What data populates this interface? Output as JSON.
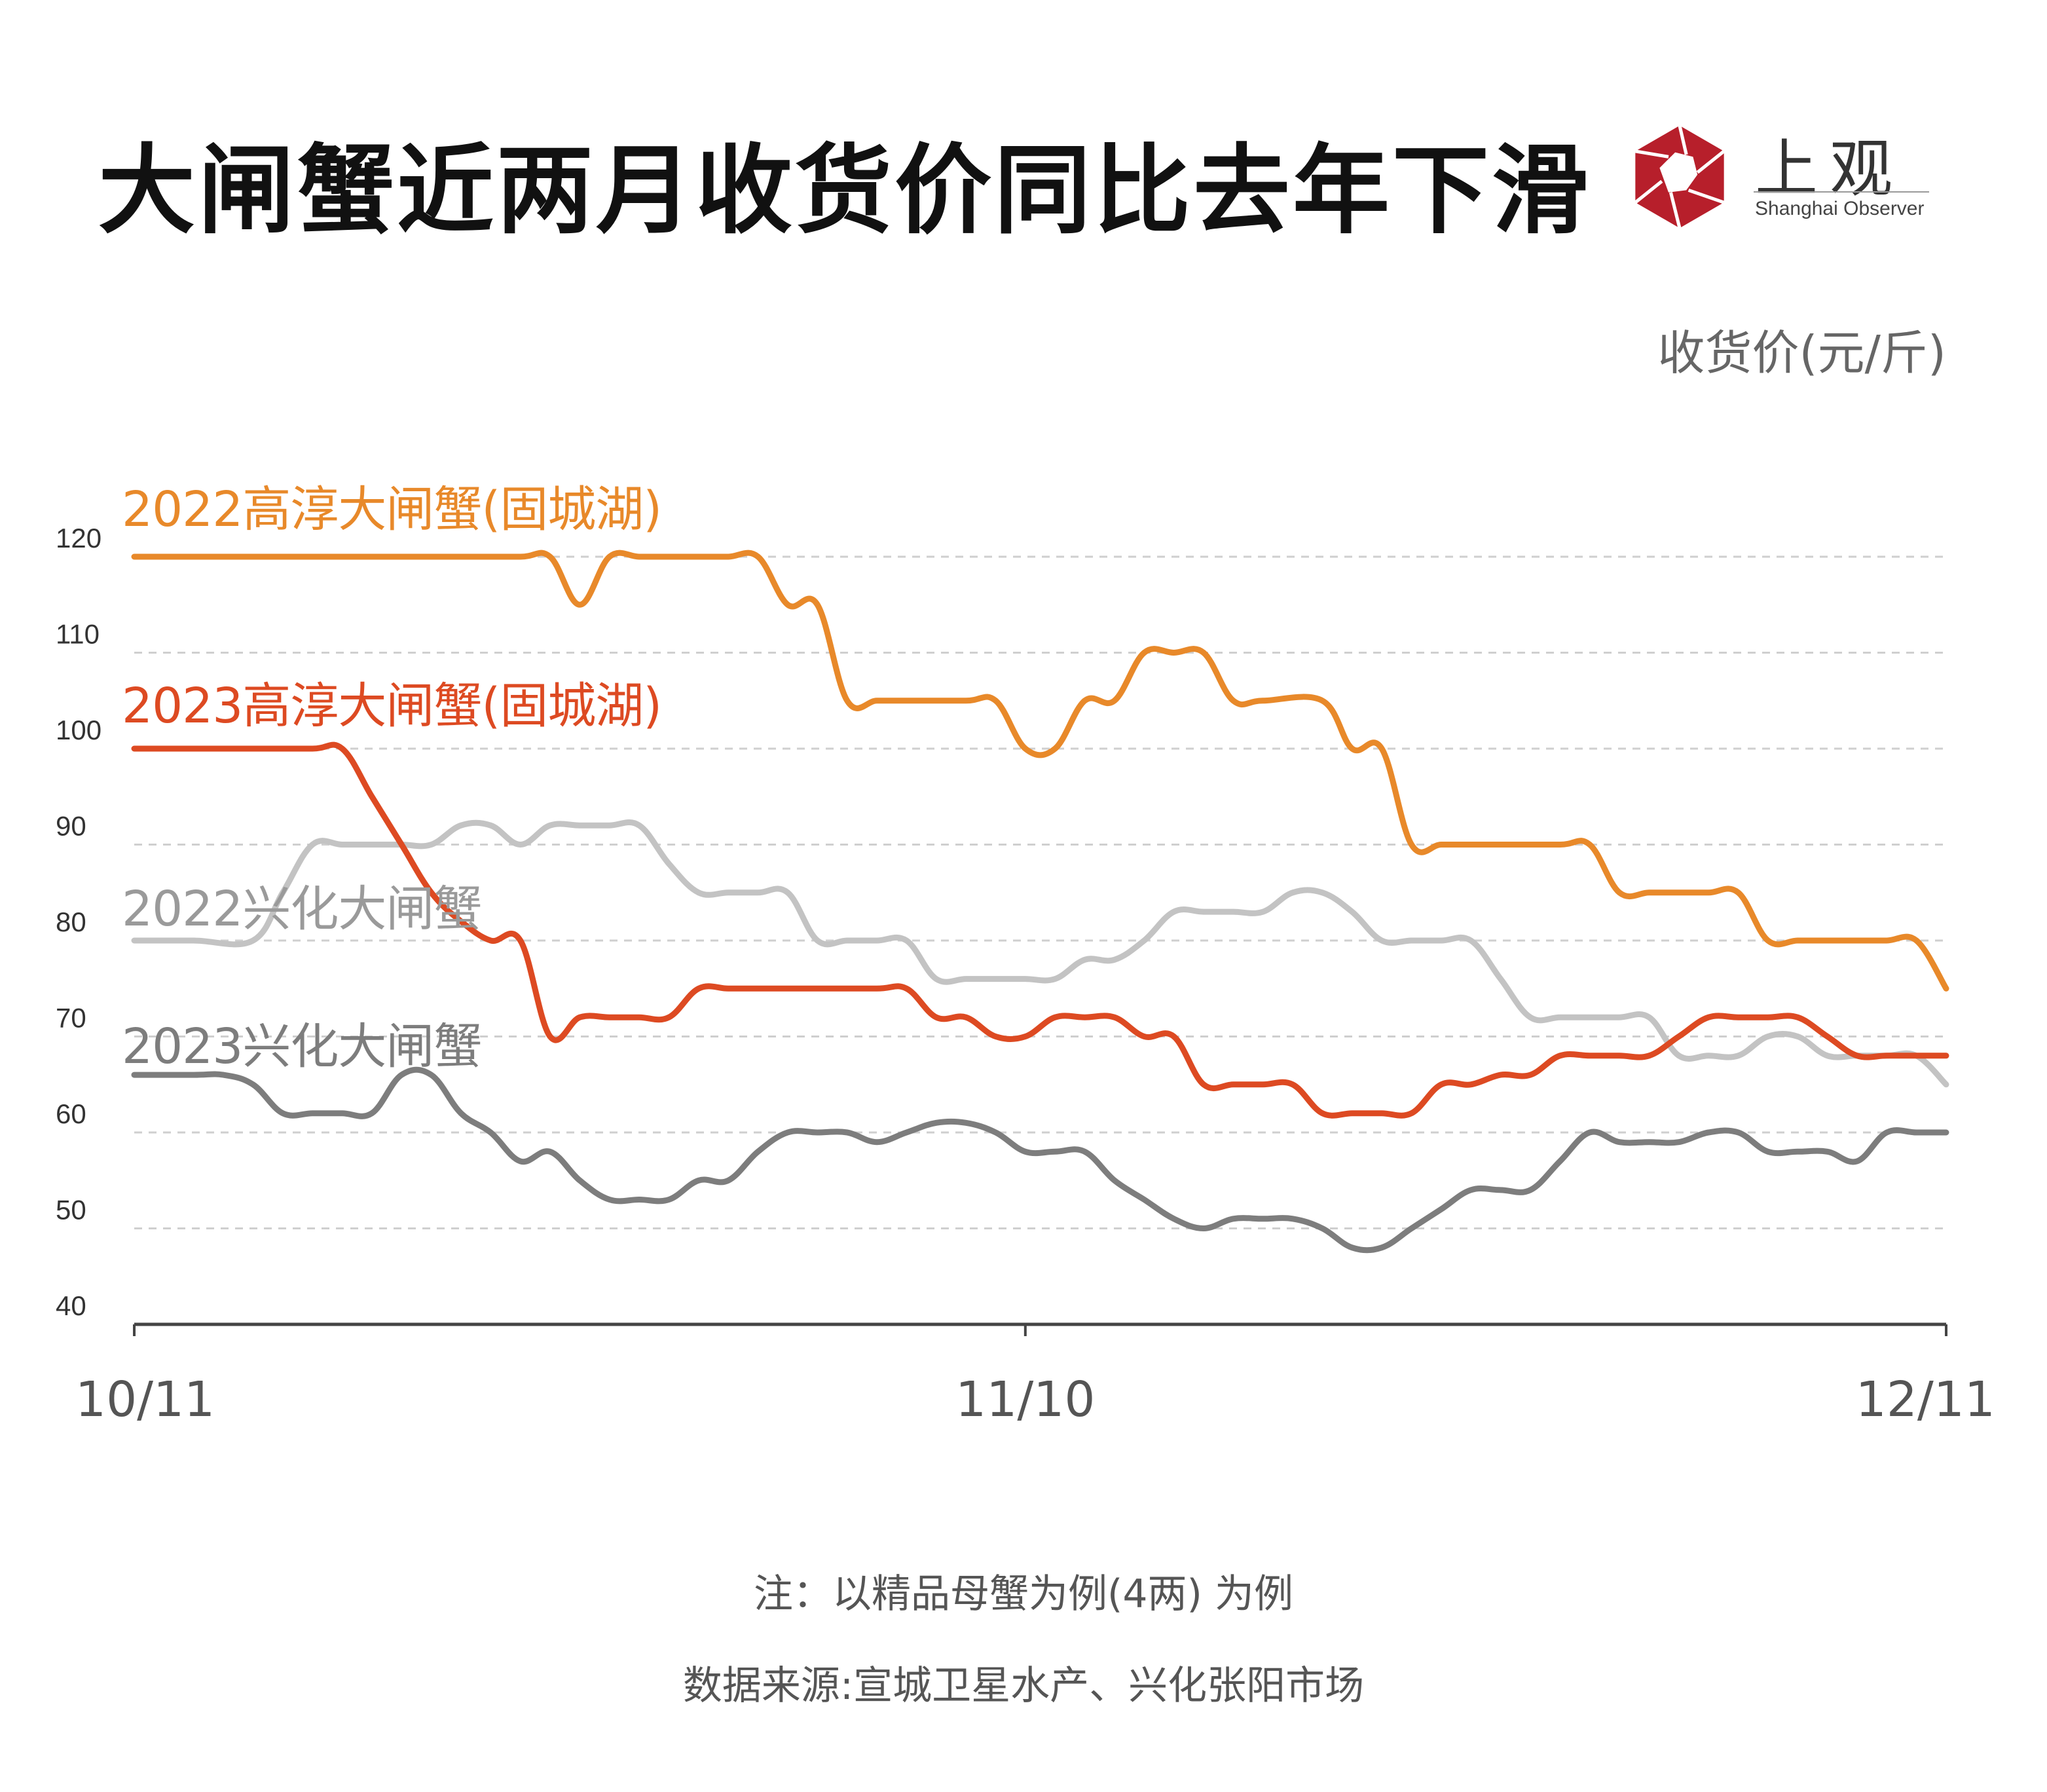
{
  "title": "大闸蟹近两月收货价同比去年下滑",
  "logo": {
    "cn": "上观",
    "en": "Shanghai Observer"
  },
  "colors": {
    "s2022_gaochun": "#E8892A",
    "s2023_gaochun": "#DD4A22",
    "s2022_xinghua": "#C3C3C3",
    "s2023_xinghua": "#7D7D7D",
    "logo_red": "#B71F2B",
    "grid": "#CFCFCF",
    "axis": "#444444"
  },
  "chart_data": {
    "type": "line",
    "title": "大闸蟹近两月收货价同比去年下滑",
    "ylabel": "收货价(元/斤)",
    "xlabel": "",
    "x_tick_labels": [
      "10/11",
      "11/10",
      "12/11"
    ],
    "x_range": [
      "10/11",
      "12/11"
    ],
    "ylim": [
      40,
      120
    ],
    "y_ticks": [
      40,
      50,
      60,
      70,
      80,
      90,
      100,
      110,
      120
    ],
    "grid": "horizontal dashed",
    "legend": "inline labels at top-left of each line",
    "series": [
      {
        "name": "2022高淳大闸蟹(固城湖)",
        "points": [
          [
            "10/11",
            120
          ],
          [
            "10/12",
            120
          ],
          [
            "10/14",
            120
          ],
          [
            "10/16",
            120
          ],
          [
            "10/18",
            120
          ],
          [
            "10/20",
            120
          ],
          [
            "10/22",
            120
          ],
          [
            "10/24",
            120
          ],
          [
            "10/25",
            120
          ],
          [
            "10/26",
            115
          ],
          [
            "10/27",
            120
          ],
          [
            "10/28",
            120
          ],
          [
            "10/29",
            120
          ],
          [
            "10/30",
            120
          ],
          [
            "10/31",
            120
          ],
          [
            "11/1",
            120
          ],
          [
            "11/2",
            115
          ],
          [
            "11/3",
            115
          ],
          [
            "11/4",
            105
          ],
          [
            "11/5",
            105
          ],
          [
            "11/6",
            105
          ],
          [
            "11/8",
            105
          ],
          [
            "11/9",
            105
          ],
          [
            "11/10",
            100
          ],
          [
            "11/11",
            100
          ],
          [
            "11/12",
            105
          ],
          [
            "11/13",
            105
          ],
          [
            "11/14",
            110
          ],
          [
            "11/15",
            110
          ],
          [
            "11/16",
            110
          ],
          [
            "11/17",
            105
          ],
          [
            "11/18",
            105
          ],
          [
            "11/20",
            105
          ],
          [
            "11/21",
            100
          ],
          [
            "11/22",
            100
          ],
          [
            "11/23",
            90
          ],
          [
            "11/24",
            90
          ],
          [
            "11/25",
            90
          ],
          [
            "11/26",
            90
          ],
          [
            "11/28",
            90
          ],
          [
            "11/29",
            90
          ],
          [
            "11/30",
            85
          ],
          [
            "12/1",
            85
          ],
          [
            "12/2",
            85
          ],
          [
            "12/3",
            85
          ],
          [
            "12/4",
            85
          ],
          [
            "12/5",
            80
          ],
          [
            "12/6",
            80
          ],
          [
            "12/7",
            80
          ],
          [
            "12/8",
            80
          ],
          [
            "12/9",
            80
          ],
          [
            "12/10",
            80
          ],
          [
            "12/11",
            75
          ]
        ]
      },
      {
        "name": "2023高淳大闸蟹(固城湖)",
        "points": [
          [
            "10/11",
            100
          ],
          [
            "10/13",
            100
          ],
          [
            "10/15",
            100
          ],
          [
            "10/17",
            100
          ],
          [
            "10/18",
            100
          ],
          [
            "10/19",
            95
          ],
          [
            "10/20",
            90
          ],
          [
            "10/21",
            85
          ],
          [
            "10/22",
            82
          ],
          [
            "10/23",
            80
          ],
          [
            "10/24",
            80
          ],
          [
            "10/25",
            70
          ],
          [
            "10/26",
            72
          ],
          [
            "10/27",
            72
          ],
          [
            "10/28",
            72
          ],
          [
            "10/29",
            72
          ],
          [
            "10/30",
            75
          ],
          [
            "10/31",
            75
          ],
          [
            "11/1",
            75
          ],
          [
            "11/3",
            75
          ],
          [
            "11/5",
            75
          ],
          [
            "11/6",
            75
          ],
          [
            "11/7",
            72
          ],
          [
            "11/8",
            72
          ],
          [
            "11/9",
            70
          ],
          [
            "11/10",
            70
          ],
          [
            "11/11",
            72
          ],
          [
            "11/12",
            72
          ],
          [
            "11/13",
            72
          ],
          [
            "11/14",
            70
          ],
          [
            "11/15",
            70
          ],
          [
            "11/16",
            65
          ],
          [
            "11/17",
            65
          ],
          [
            "11/18",
            65
          ],
          [
            "11/19",
            65
          ],
          [
            "11/20",
            62
          ],
          [
            "11/21",
            62
          ],
          [
            "11/22",
            62
          ],
          [
            "11/23",
            62
          ],
          [
            "11/24",
            65
          ],
          [
            "11/25",
            65
          ],
          [
            "11/26",
            66
          ],
          [
            "11/27",
            66
          ],
          [
            "11/28",
            68
          ],
          [
            "11/29",
            68
          ],
          [
            "11/30",
            68
          ],
          [
            "12/1",
            68
          ],
          [
            "12/2",
            70
          ],
          [
            "12/3",
            72
          ],
          [
            "12/4",
            72
          ],
          [
            "12/5",
            72
          ],
          [
            "12/6",
            72
          ],
          [
            "12/7",
            70
          ],
          [
            "12/8",
            68
          ],
          [
            "12/9",
            68
          ],
          [
            "12/10",
            68
          ],
          [
            "12/11",
            68
          ]
        ]
      },
      {
        "name": "2022兴化大闸蟹",
        "points": [
          [
            "10/11",
            80
          ],
          [
            "10/13",
            80
          ],
          [
            "10/15",
            80
          ],
          [
            "10/16",
            85
          ],
          [
            "10/17",
            90
          ],
          [
            "10/18",
            90
          ],
          [
            "10/19",
            90
          ],
          [
            "10/20",
            90
          ],
          [
            "10/21",
            90
          ],
          [
            "10/22",
            92
          ],
          [
            "10/23",
            92
          ],
          [
            "10/24",
            90
          ],
          [
            "10/25",
            92
          ],
          [
            "10/26",
            92
          ],
          [
            "10/27",
            92
          ],
          [
            "10/28",
            92
          ],
          [
            "10/29",
            88
          ],
          [
            "10/30",
            85
          ],
          [
            "10/31",
            85
          ],
          [
            "11/1",
            85
          ],
          [
            "11/2",
            85
          ],
          [
            "11/3",
            80
          ],
          [
            "11/4",
            80
          ],
          [
            "11/5",
            80
          ],
          [
            "11/6",
            80
          ],
          [
            "11/7",
            76
          ],
          [
            "11/8",
            76
          ],
          [
            "11/9",
            76
          ],
          [
            "11/10",
            76
          ],
          [
            "11/11",
            76
          ],
          [
            "11/12",
            78
          ],
          [
            "11/13",
            78
          ],
          [
            "11/14",
            80
          ],
          [
            "11/15",
            83
          ],
          [
            "11/16",
            83
          ],
          [
            "11/17",
            83
          ],
          [
            "11/18",
            83
          ],
          [
            "11/19",
            85
          ],
          [
            "11/20",
            85
          ],
          [
            "11/21",
            83
          ],
          [
            "11/22",
            80
          ],
          [
            "11/23",
            80
          ],
          [
            "11/24",
            80
          ],
          [
            "11/25",
            80
          ],
          [
            "11/26",
            76
          ],
          [
            "11/27",
            72
          ],
          [
            "11/28",
            72
          ],
          [
            "11/29",
            72
          ],
          [
            "11/30",
            72
          ],
          [
            "12/1",
            72
          ],
          [
            "12/2",
            68
          ],
          [
            "12/3",
            68
          ],
          [
            "12/4",
            68
          ],
          [
            "12/5",
            70
          ],
          [
            "12/6",
            70
          ],
          [
            "12/7",
            68
          ],
          [
            "12/8",
            68
          ],
          [
            "12/9",
            68
          ],
          [
            "12/10",
            68
          ],
          [
            "12/11",
            65
          ]
        ]
      },
      {
        "name": "2023兴化大闸蟹",
        "points": [
          [
            "10/11",
            66
          ],
          [
            "10/13",
            66
          ],
          [
            "10/14",
            66
          ],
          [
            "10/15",
            65
          ],
          [
            "10/16",
            62
          ],
          [
            "10/17",
            62
          ],
          [
            "10/18",
            62
          ],
          [
            "10/19",
            62
          ],
          [
            "10/20",
            66
          ],
          [
            "10/21",
            66
          ],
          [
            "10/22",
            62
          ],
          [
            "10/23",
            60
          ],
          [
            "10/24",
            57
          ],
          [
            "10/25",
            58
          ],
          [
            "10/26",
            55
          ],
          [
            "10/27",
            53
          ],
          [
            "10/28",
            53
          ],
          [
            "10/29",
            53
          ],
          [
            "10/30",
            55
          ],
          [
            "10/31",
            55
          ],
          [
            "11/1",
            58
          ],
          [
            "11/2",
            60
          ],
          [
            "11/3",
            60
          ],
          [
            "11/4",
            60
          ],
          [
            "11/5",
            59
          ],
          [
            "11/6",
            60
          ],
          [
            "11/7",
            61
          ],
          [
            "11/8",
            61
          ],
          [
            "11/9",
            60
          ],
          [
            "11/10",
            58
          ],
          [
            "11/11",
            58
          ],
          [
            "11/12",
            58
          ],
          [
            "11/13",
            55
          ],
          [
            "11/14",
            53
          ],
          [
            "11/15",
            51
          ],
          [
            "11/16",
            50
          ],
          [
            "11/17",
            51
          ],
          [
            "11/18",
            51
          ],
          [
            "11/19",
            51
          ],
          [
            "11/20",
            50
          ],
          [
            "11/21",
            48
          ],
          [
            "11/22",
            48
          ],
          [
            "11/23",
            50
          ],
          [
            "11/24",
            52
          ],
          [
            "11/25",
            54
          ],
          [
            "11/26",
            54
          ],
          [
            "11/27",
            54
          ],
          [
            "11/28",
            57
          ],
          [
            "11/29",
            60
          ],
          [
            "11/30",
            59
          ],
          [
            "12/1",
            59
          ],
          [
            "12/2",
            59
          ],
          [
            "12/3",
            60
          ],
          [
            "12/4",
            60
          ],
          [
            "12/5",
            58
          ],
          [
            "12/6",
            58
          ],
          [
            "12/7",
            58
          ],
          [
            "12/8",
            57
          ],
          [
            "12/9",
            60
          ],
          [
            "12/10",
            60
          ],
          [
            "12/11",
            60
          ]
        ]
      }
    ],
    "annotations": [
      "注：以精品母蟹为例(4两) 为例",
      "数据来源:宣城卫星水产、兴化张阳市场"
    ]
  },
  "footnote": "注：以精品母蟹为例(4两) 为例",
  "source": "数据来源:宣城卫星水产、兴化张阳市场"
}
